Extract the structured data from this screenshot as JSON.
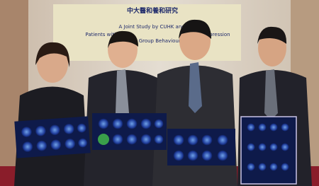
{
  "banner": {
    "title_zh": "中大醫和養和研究",
    "title_en": "A Joint Study by CUHK and HKSH",
    "line1": "Patients with Co-",
    "line2": "Group Behaviour Di",
    "line3": "Depression"
  }
}
